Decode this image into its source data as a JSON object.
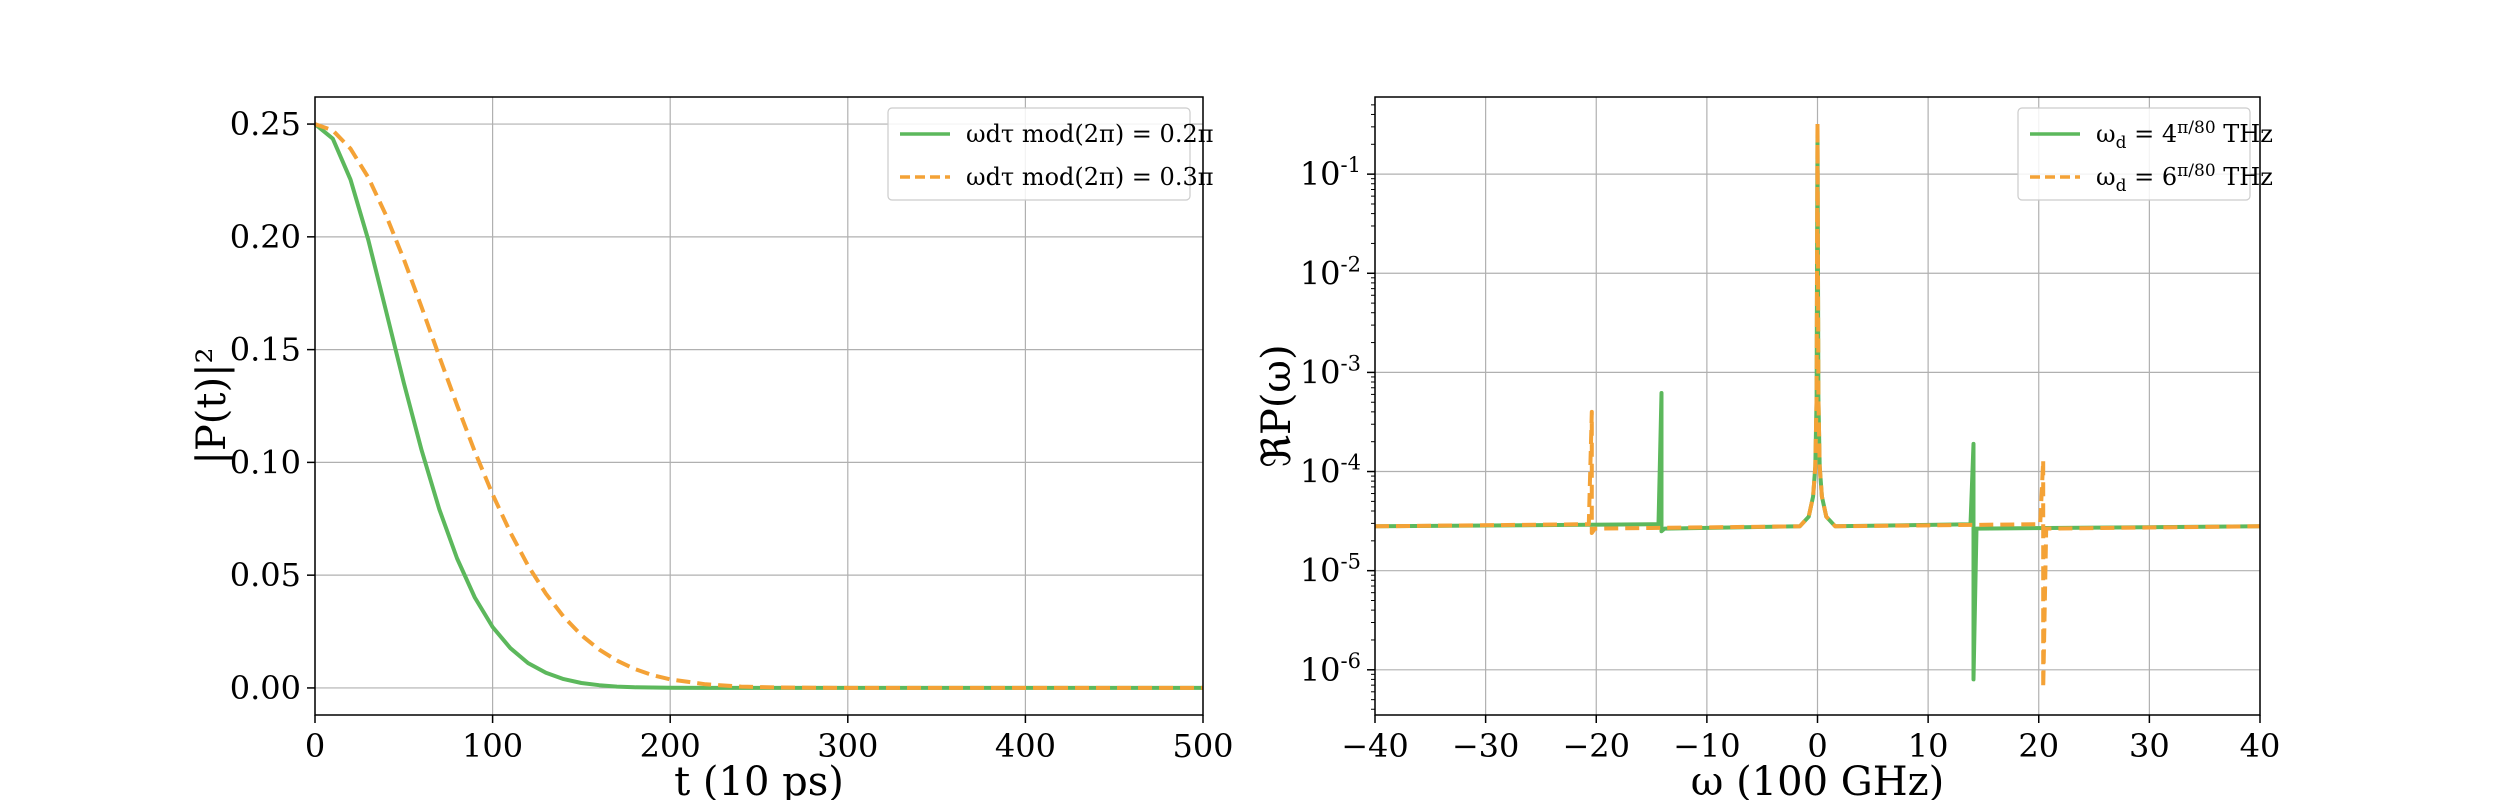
{
  "chart_data": [
    {
      "type": "line",
      "xlabel": "t (10 ps)",
      "ylabel": "|P(t)|²",
      "xlim": [
        0,
        500
      ],
      "ylim": [
        -0.012,
        0.262
      ],
      "xticks": [
        "0",
        "100",
        "200",
        "300",
        "400",
        "500"
      ],
      "yticks": [
        "0.00",
        "0.05",
        "0.10",
        "0.15",
        "0.20",
        "0.25"
      ],
      "grid": true,
      "legend_position": "top-right",
      "series": [
        {
          "name": "ωdτ mod(2π) = 0.2π",
          "color": "#5cb85c",
          "style": "solid",
          "x": [
            0,
            10,
            20,
            30,
            40,
            50,
            60,
            70,
            80,
            90,
            100,
            110,
            120,
            130,
            140,
            150,
            160,
            170,
            180,
            190,
            200,
            220,
            240,
            260,
            280,
            300,
            350,
            400,
            450,
            500
          ],
          "y": [
            0.25,
            0.2435,
            0.2254,
            0.1986,
            0.1672,
            0.1353,
            0.1054,
            0.0792,
            0.0574,
            0.0401,
            0.027,
            0.0176,
            0.011,
            0.0067,
            0.0039,
            0.0022,
            0.0012,
            0.0006,
            0.0003,
            0.0002,
            0.0001,
            0.0,
            0.0,
            0.0,
            0.0,
            0.0,
            0.0,
            0.0,
            0.0,
            0.0
          ]
        },
        {
          "name": "ωdτ mod(2π) = 0.3π",
          "color": "#f4a236",
          "style": "dashed",
          "x": [
            0,
            10,
            20,
            30,
            40,
            50,
            60,
            70,
            80,
            90,
            100,
            110,
            120,
            130,
            140,
            150,
            160,
            170,
            180,
            190,
            200,
            220,
            240,
            260,
            280,
            300,
            350,
            400,
            450,
            500
          ],
          "y": [
            0.25,
            0.2472,
            0.2391,
            0.2263,
            0.2096,
            0.1901,
            0.1688,
            0.1469,
            0.1253,
            0.1048,
            0.0858,
            0.0689,
            0.0542,
            0.0418,
            0.0316,
            0.0234,
            0.017,
            0.0121,
            0.0084,
            0.0057,
            0.0038,
            0.0016,
            0.0006,
            0.0002,
            0.0001,
            0.0,
            0.0,
            0.0,
            0.0,
            0.0
          ]
        }
      ]
    },
    {
      "type": "line",
      "xlabel": "ω (100 GHz)",
      "ylabel": "ℜP(ω)",
      "xlim": [
        -40,
        40
      ],
      "ylim": [
        3.5e-07,
        0.6
      ],
      "yscale": "log",
      "xticks": [
        "−40",
        "−30",
        "−20",
        "−10",
        "0",
        "10",
        "20",
        "30",
        "40"
      ],
      "yticks": [
        {
          "base": "10",
          "exp": "-6"
        },
        {
          "base": "10",
          "exp": "-5"
        },
        {
          "base": "10",
          "exp": "-4"
        },
        {
          "base": "10",
          "exp": "-3"
        },
        {
          "base": "10",
          "exp": "-2"
        },
        {
          "base": "10",
          "exp": "-1"
        }
      ],
      "grid": true,
      "legend_position": "top-right",
      "series": [
        {
          "name": "ωd = 4π/80 THz",
          "label": {
            "pre": "ω",
            "sub": "d",
            "mid": " = 4",
            "num": "π",
            "den": "80",
            "post": " THz"
          },
          "color": "#5cb85c",
          "style": "solid",
          "baseline": 2.8e-05,
          "peaks": [
            {
              "x": -14.1,
              "top": 0.00062,
              "bottom": 2.5e-05
            },
            {
              "x": 0.0,
              "top": 0.3,
              "bottom": 2.8e-05
            },
            {
              "x": 14.1,
              "top": 0.00019,
              "bottom": 8e-07
            }
          ]
        },
        {
          "name": "ωd = 6π/80 THz",
          "label": {
            "pre": "ω",
            "sub": "d",
            "mid": " = 6",
            "num": "π",
            "den": "80",
            "post": " THz"
          },
          "color": "#f4a236",
          "style": "dashed",
          "baseline": 2.8e-05,
          "peaks": [
            {
              "x": -20.4,
              "top": 0.0004,
              "bottom": 2.4e-05
            },
            {
              "x": 0.0,
              "top": 0.33,
              "bottom": 2.8e-05
            },
            {
              "x": 20.4,
              "top": 0.00013,
              "bottom": 6.5e-07
            }
          ]
        }
      ]
    }
  ]
}
